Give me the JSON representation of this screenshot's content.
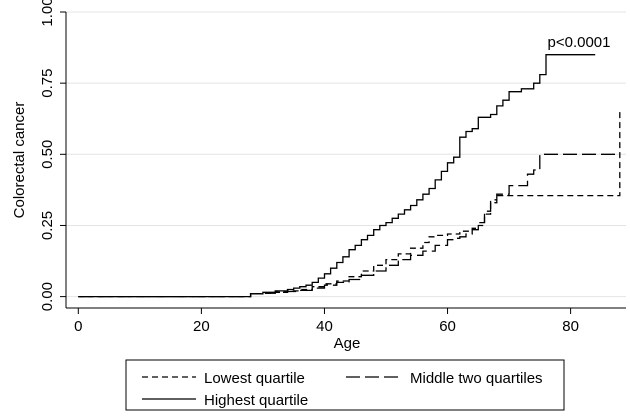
{
  "chart_data": {
    "type": "line",
    "title": "",
    "xlabel": "Age",
    "ylabel": "Colorectal cancer",
    "xlim": [
      -2,
      89
    ],
    "ylim": [
      -0.04,
      1.0
    ],
    "x_ticks": [
      0,
      20,
      40,
      60,
      80
    ],
    "x_tick_labels": [
      "0",
      "20",
      "40",
      "60",
      "80"
    ],
    "y_ticks": [
      0,
      0.25,
      0.5,
      0.75,
      1
    ],
    "y_tick_labels": [
      "0.00",
      "0.25",
      "0.50",
      "0.75",
      "1.00"
    ],
    "grid": "horizontal",
    "legend_position": "bottom",
    "annotation": "p<0.0001",
    "series": [
      {
        "name": "Lowest quartile",
        "dash": "dashed",
        "color": "#000000",
        "x": [
          0,
          27,
          28,
          30,
          32,
          34,
          36,
          38,
          40,
          42,
          44,
          46,
          48,
          50,
          52,
          54,
          56,
          57,
          58,
          60,
          62,
          64,
          65,
          66,
          67,
          68,
          88,
          88
        ],
        "y": [
          0,
          0,
          0.01,
          0.012,
          0.015,
          0.02,
          0.025,
          0.035,
          0.045,
          0.055,
          0.07,
          0.09,
          0.11,
          0.13,
          0.15,
          0.17,
          0.19,
          0.21,
          0.215,
          0.22,
          0.23,
          0.24,
          0.25,
          0.29,
          0.33,
          0.355,
          0.355,
          0.66
        ]
      },
      {
        "name": "Middle two quartiles",
        "dash": "longdash",
        "color": "#000000",
        "x": [
          0,
          27,
          28,
          30,
          32,
          34,
          36,
          38,
          40,
          42,
          44,
          46,
          48,
          50,
          52,
          54,
          56,
          58,
          60,
          61,
          62,
          63,
          64,
          65,
          66,
          67,
          68,
          70,
          72,
          73,
          74,
          75,
          88
        ],
        "y": [
          0,
          0,
          0.01,
          0.012,
          0.015,
          0.018,
          0.022,
          0.03,
          0.04,
          0.05,
          0.06,
          0.075,
          0.09,
          0.11,
          0.13,
          0.145,
          0.16,
          0.18,
          0.2,
          0.205,
          0.21,
          0.22,
          0.235,
          0.26,
          0.3,
          0.34,
          0.36,
          0.39,
          0.39,
          0.43,
          0.445,
          0.5,
          0.5
        ]
      },
      {
        "name": "Highest quartile",
        "dash": "solid",
        "color": "#000000",
        "x": [
          0,
          27,
          28,
          30,
          32,
          34,
          35,
          36,
          37,
          38,
          39,
          40,
          41,
          42,
          43,
          44,
          45,
          46,
          47,
          48,
          49,
          50,
          51,
          52,
          53,
          54,
          55,
          56,
          57,
          58,
          59,
          60,
          61,
          62,
          63,
          64,
          65,
          66,
          67,
          68,
          69,
          70,
          71,
          72,
          73,
          74,
          75,
          76,
          84
        ],
        "y": [
          0,
          0,
          0.01,
          0.015,
          0.02,
          0.025,
          0.03,
          0.035,
          0.04,
          0.05,
          0.065,
          0.08,
          0.1,
          0.12,
          0.14,
          0.165,
          0.18,
          0.2,
          0.215,
          0.235,
          0.25,
          0.26,
          0.275,
          0.29,
          0.305,
          0.32,
          0.34,
          0.36,
          0.38,
          0.41,
          0.44,
          0.47,
          0.49,
          0.56,
          0.58,
          0.59,
          0.63,
          0.63,
          0.64,
          0.67,
          0.69,
          0.72,
          0.72,
          0.73,
          0.73,
          0.75,
          0.78,
          0.85,
          0.85
        ]
      }
    ]
  }
}
